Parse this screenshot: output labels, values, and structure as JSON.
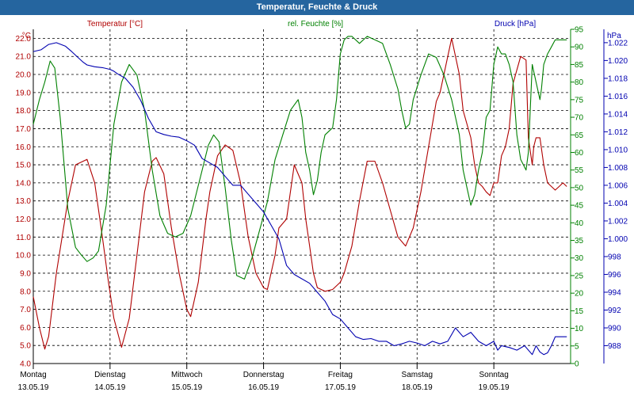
{
  "window": {
    "title": "Temperatur, Feuchte & Druck"
  },
  "colors": {
    "temp": "#b00000",
    "hum": "#008000",
    "press": "#0000b0",
    "titlebar": "#25659f",
    "grid": "#000000"
  },
  "chart_data": {
    "type": "line",
    "title": "Temperatur, Feuchte & Druck",
    "grid": true,
    "legend_placement": "top",
    "x_axis": {
      "range": [
        0,
        7
      ],
      "ticks": [
        {
          "day": "Montag",
          "date": "13.05.19"
        },
        {
          "day": "Dienstag",
          "date": "14.05.19"
        },
        {
          "day": "Mittwoch",
          "date": "15.05.19"
        },
        {
          "day": "Donnerstag",
          "date": "16.05.19"
        },
        {
          "day": "Freitag",
          "date": "17.05.19"
        },
        {
          "day": "Samstag",
          "date": "18.05.19"
        },
        {
          "day": "Sonntag",
          "date": "19.05.19"
        }
      ]
    },
    "axes": {
      "temp": {
        "unit": "°C",
        "min": 4.0,
        "max": 22.5,
        "ticks": [
          "4.0",
          "5.0",
          "6.0",
          "7.0",
          "8.0",
          "9.0",
          "10.0",
          "11.0",
          "12.0",
          "13.0",
          "14.0",
          "15.0",
          "16.0",
          "17.0",
          "18.0",
          "19.0",
          "20.0",
          "21.0",
          "22.0"
        ]
      },
      "hum": {
        "unit": "%",
        "min": 0,
        "max": 95,
        "ticks": [
          "0",
          "5",
          "10",
          "15",
          "20",
          "25",
          "30",
          "35",
          "40",
          "45",
          "50",
          "55",
          "60",
          "65",
          "70",
          "75",
          "80",
          "85",
          "90",
          "95"
        ]
      },
      "press": {
        "unit": "hPa",
        "min": 986.0,
        "max": 1023.5,
        "ticks": [
          "988",
          "990",
          "992",
          "994",
          "996",
          "998",
          "1.000",
          "1.002",
          "1.004",
          "1.006",
          "1.008",
          "1.010",
          "1.012",
          "1.014",
          "1.016",
          "1.018",
          "1.020",
          "1.022"
        ]
      }
    },
    "series": [
      {
        "name": "Temperatur [°C]",
        "axis": "temp",
        "x": [
          0,
          0.08,
          0.15,
          0.2,
          0.3,
          0.45,
          0.55,
          0.7,
          0.8,
          0.9,
          0.98,
          1.05,
          1.15,
          1.25,
          1.35,
          1.45,
          1.55,
          1.6,
          1.7,
          1.8,
          1.9,
          2.0,
          2.05,
          2.15,
          2.25,
          2.3,
          2.4,
          2.5,
          2.6,
          2.7,
          2.8,
          2.9,
          3.0,
          3.05,
          3.15,
          3.2,
          3.3,
          3.4,
          3.5,
          3.55,
          3.6,
          3.65,
          3.7,
          3.8,
          3.9,
          4.0,
          4.05,
          4.15,
          4.25,
          4.35,
          4.45,
          4.55,
          4.65,
          4.75,
          4.85,
          4.95,
          5.05,
          5.15,
          5.25,
          5.3,
          5.4,
          5.45,
          5.55,
          5.6,
          5.7,
          5.75,
          5.8,
          5.85,
          5.9,
          5.95,
          6.0,
          6.05,
          6.1,
          6.15,
          6.2,
          6.25,
          6.35,
          6.42,
          6.45,
          6.5,
          6.52,
          6.55,
          6.6,
          6.65,
          6.7,
          6.75,
          6.8,
          6.85,
          6.9,
          6.95
        ],
        "values": [
          7.7,
          6.0,
          4.8,
          5.5,
          9.0,
          13.0,
          15.0,
          15.3,
          14.0,
          11.0,
          8.5,
          6.5,
          4.9,
          6.5,
          10.0,
          13.5,
          15.2,
          15.4,
          14.5,
          11.5,
          9.0,
          7.0,
          6.6,
          8.5,
          12.0,
          13.5,
          15.5,
          16.1,
          15.8,
          14.0,
          11.0,
          9.0,
          8.2,
          8.1,
          10.0,
          11.5,
          12.0,
          15.0,
          14.0,
          12.0,
          10.5,
          9.0,
          8.2,
          8.0,
          8.1,
          8.5,
          9.0,
          10.5,
          13.0,
          15.2,
          15.2,
          14.0,
          12.5,
          11.0,
          10.5,
          11.5,
          13.5,
          16.0,
          18.5,
          19.0,
          21.0,
          22.0,
          20.0,
          18.0,
          16.5,
          15.0,
          14.0,
          13.8,
          13.5,
          13.3,
          14.0,
          14.0,
          15.5,
          16.0,
          17.0,
          19.5,
          21.0,
          20.8,
          16.5,
          15.0,
          16.0,
          16.5,
          16.5,
          15.0,
          14.0,
          13.8,
          13.6,
          13.8,
          14.0,
          13.8
        ]
      },
      {
        "name": "rel. Feuchte [%]",
        "axis": "hum",
        "x": [
          0,
          0.08,
          0.15,
          0.22,
          0.28,
          0.35,
          0.45,
          0.55,
          0.62,
          0.7,
          0.78,
          0.85,
          0.95,
          1.05,
          1.15,
          1.25,
          1.35,
          1.45,
          1.55,
          1.65,
          1.75,
          1.85,
          1.95,
          2.05,
          2.12,
          2.2,
          2.28,
          2.35,
          2.42,
          2.5,
          2.58,
          2.65,
          2.75,
          2.85,
          2.95,
          3.05,
          3.15,
          3.25,
          3.35,
          3.45,
          3.5,
          3.55,
          3.6,
          3.65,
          3.7,
          3.75,
          3.8,
          3.85,
          3.9,
          3.95,
          4.0,
          4.05,
          4.1,
          4.15,
          4.25,
          4.35,
          4.45,
          4.55,
          4.65,
          4.75,
          4.8,
          4.85,
          4.9,
          4.95,
          5.05,
          5.15,
          5.25,
          5.35,
          5.45,
          5.55,
          5.6,
          5.65,
          5.7,
          5.75,
          5.8,
          5.85,
          5.9,
          5.95,
          6.0,
          6.05,
          6.1,
          6.15,
          6.2,
          6.25,
          6.3,
          6.35,
          6.42,
          6.45,
          6.5,
          6.55,
          6.6,
          6.62,
          6.65,
          6.7,
          6.75,
          6.8,
          6.85,
          6.9,
          6.95
        ],
        "values": [
          68,
          75,
          80,
          86,
          84,
          70,
          44,
          33,
          31,
          29,
          30,
          32,
          45,
          68,
          80,
          85,
          82,
          72,
          55,
          42,
          37,
          36,
          37,
          42,
          48,
          55,
          62,
          65,
          63,
          50,
          35,
          25,
          24,
          30,
          38,
          46,
          58,
          65,
          72,
          75,
          70,
          60,
          55,
          48,
          52,
          60,
          65,
          66,
          67,
          75,
          88,
          92,
          93,
          93,
          91,
          93,
          92,
          91,
          85,
          78,
          72,
          67,
          68,
          75,
          82,
          88,
          87,
          82,
          75,
          65,
          55,
          50,
          45,
          48,
          55,
          60,
          70,
          72,
          85,
          90,
          88,
          88,
          85,
          80,
          65,
          58,
          55,
          60,
          85,
          80,
          75,
          78,
          85,
          88,
          90,
          92,
          92,
          92,
          92
        ]
      },
      {
        "name": "Druck [hPa]",
        "axis": "press",
        "x": [
          0,
          0.1,
          0.2,
          0.3,
          0.42,
          0.5,
          0.6,
          0.65,
          0.7,
          0.8,
          0.9,
          1.0,
          1.05,
          1.1,
          1.2,
          1.3,
          1.4,
          1.5,
          1.6,
          1.7,
          1.8,
          1.9,
          2.0,
          2.1,
          2.2,
          2.3,
          2.4,
          2.5,
          2.55,
          2.6,
          2.7,
          2.8,
          2.9,
          3.0,
          3.1,
          3.2,
          3.3,
          3.4,
          3.5,
          3.6,
          3.7,
          3.8,
          3.9,
          4.0,
          4.1,
          4.2,
          4.3,
          4.4,
          4.5,
          4.6,
          4.7,
          4.8,
          4.9,
          5.0,
          5.1,
          5.2,
          5.3,
          5.4,
          5.5,
          5.6,
          5.7,
          5.8,
          5.9,
          6.0,
          6.05,
          6.1,
          6.2,
          6.3,
          6.4,
          6.5,
          6.55,
          6.6,
          6.65,
          6.7,
          6.75,
          6.8,
          6.85,
          6.95
        ],
        "values": [
          1021,
          1021.2,
          1021.8,
          1022.0,
          1021.6,
          1021.0,
          1020.2,
          1019.8,
          1019.5,
          1019.3,
          1019.2,
          1019.0,
          1018.8,
          1018.5,
          1018.0,
          1017.0,
          1015.5,
          1013.5,
          1012.0,
          1011.7,
          1011.5,
          1011.4,
          1011.0,
          1010.5,
          1009.0,
          1008.5,
          1008.0,
          1007.0,
          1006.5,
          1006.0,
          1006.0,
          1005.0,
          1004.0,
          1003.0,
          1001.5,
          1000.0,
          997.0,
          996.0,
          995.5,
          995.0,
          994.0,
          993.0,
          991.5,
          991.0,
          990.0,
          989.0,
          988.7,
          988.8,
          988.5,
          988.5,
          988.0,
          988.2,
          988.5,
          988.3,
          988.0,
          988.5,
          988.2,
          988.5,
          990.0,
          989.0,
          989.5,
          988.5,
          988.0,
          988.5,
          987.5,
          988.0,
          987.8,
          987.5,
          988.0,
          987.0,
          988.0,
          987.3,
          987.0,
          987.2,
          988.0,
          989.0,
          989.0,
          989.0
        ]
      }
    ]
  }
}
